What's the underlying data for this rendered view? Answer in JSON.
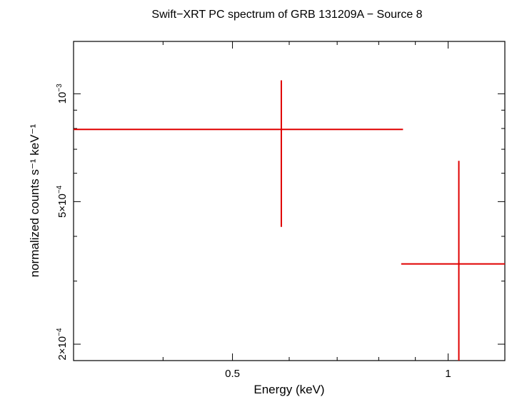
{
  "chart_data": {
    "type": "scatter",
    "title": "Swift−XRT PC spectrum of GRB 131209A − Source 8",
    "xlabel": "Energy (keV)",
    "ylabel": "normalized counts s⁻¹ keV⁻¹",
    "x_scale": "log",
    "y_scale": "log",
    "xlim": [
      0.3,
      1.2
    ],
    "ylim": [
      0.00018,
      0.0014
    ],
    "x_ticks": [
      {
        "value": 0.5,
        "label": "0.5"
      },
      {
        "value": 1,
        "label": "1"
      }
    ],
    "y_ticks": [
      {
        "value": 0.0002,
        "mant": "2×10",
        "exp": "−4"
      },
      {
        "value": 0.0005,
        "mant": "5×10",
        "exp": "−4"
      },
      {
        "value": 0.001,
        "mant": "10",
        "exp": "−3"
      }
    ],
    "series": [
      {
        "color": "#e00000",
        "points": [
          {
            "x": 0.585,
            "xlo": 0.3,
            "xhi": 0.865,
            "y": 0.000795,
            "ylo": 0.000425,
            "yhi": 0.00109
          },
          {
            "x": 1.035,
            "xlo": 0.86,
            "xhi": 1.2,
            "y": 0.000335,
            "ylo": 0.00018,
            "yhi": 0.00065
          }
        ]
      }
    ],
    "grid": false
  }
}
